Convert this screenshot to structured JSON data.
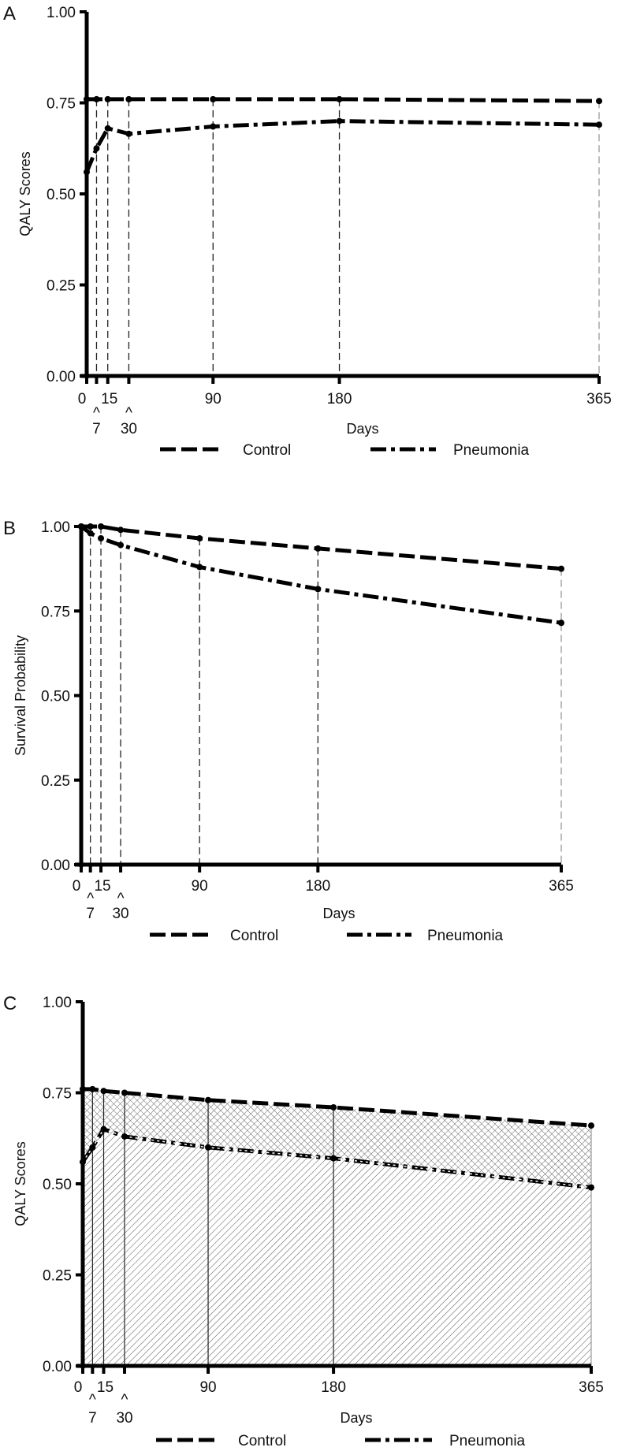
{
  "chart_data": [
    {
      "panel_label": "A",
      "type": "line",
      "xlabel": "Days",
      "ylabel": "QALY Scores",
      "ylim": [
        0,
        1
      ],
      "yticks": [
        "0.00",
        "0.25",
        "0.50",
        "0.75",
        "1.00"
      ],
      "x": [
        0,
        7,
        15,
        30,
        90,
        180,
        365
      ],
      "xtick_labels_top": [
        "0",
        "15",
        "90",
        "180",
        "365"
      ],
      "xtick_labels_bottom": [
        "7",
        "30"
      ],
      "caret": "^",
      "series": [
        {
          "name": "Control",
          "style": "dashed",
          "values": [
            0.76,
            0.76,
            0.76,
            0.76,
            0.76,
            0.76,
            0.755
          ]
        },
        {
          "name": "Pneumonia",
          "style": "dash-dot",
          "values": [
            0.56,
            0.625,
            0.68,
            0.665,
            0.685,
            0.7,
            0.69
          ]
        }
      ],
      "drop_lines": "dashed",
      "legend": "bottom",
      "grid": false
    },
    {
      "panel_label": "B",
      "type": "line",
      "xlabel": "Days",
      "ylabel": "Survival Probability",
      "ylim": [
        0,
        1
      ],
      "yticks": [
        "0.00",
        "0.25",
        "0.50",
        "0.75",
        "1.00"
      ],
      "x": [
        0,
        7,
        15,
        30,
        90,
        180,
        365
      ],
      "xtick_labels_top": [
        "0",
        "15",
        "90",
        "180",
        "365"
      ],
      "xtick_labels_bottom": [
        "7",
        "30"
      ],
      "caret": "^",
      "series": [
        {
          "name": "Control",
          "style": "dashed",
          "values": [
            1.0,
            1.0,
            1.0,
            0.99,
            0.965,
            0.935,
            0.875
          ]
        },
        {
          "name": "Pneumonia",
          "style": "dash-dot",
          "values": [
            1.0,
            0.98,
            0.965,
            0.945,
            0.88,
            0.815,
            0.715
          ]
        }
      ],
      "drop_lines": "dashed",
      "legend": "bottom",
      "grid": false
    },
    {
      "panel_label": "C",
      "type": "area",
      "xlabel": "Days",
      "ylabel": "QALY Scores",
      "ylim": [
        0,
        1
      ],
      "yticks": [
        "0.00",
        "0.25",
        "0.50",
        "0.75",
        "1.00"
      ],
      "x": [
        0,
        7,
        15,
        30,
        90,
        180,
        365
      ],
      "xtick_labels_top": [
        "0",
        "15",
        "90",
        "180",
        "365"
      ],
      "xtick_labels_bottom": [
        "7",
        "30"
      ],
      "caret": "^",
      "series": [
        {
          "name": "Control",
          "style": "dashed",
          "values": [
            0.76,
            0.76,
            0.755,
            0.75,
            0.73,
            0.71,
            0.66
          ]
        },
        {
          "name": "Pneumonia",
          "style": "dash-dot",
          "values": [
            0.56,
            0.6,
            0.65,
            0.63,
            0.6,
            0.57,
            0.49
          ]
        }
      ],
      "fill_between": "cross-hatch",
      "fill_below": "diagonal-hatch",
      "drop_lines": "solid",
      "legend": "bottom",
      "grid": false
    }
  ]
}
